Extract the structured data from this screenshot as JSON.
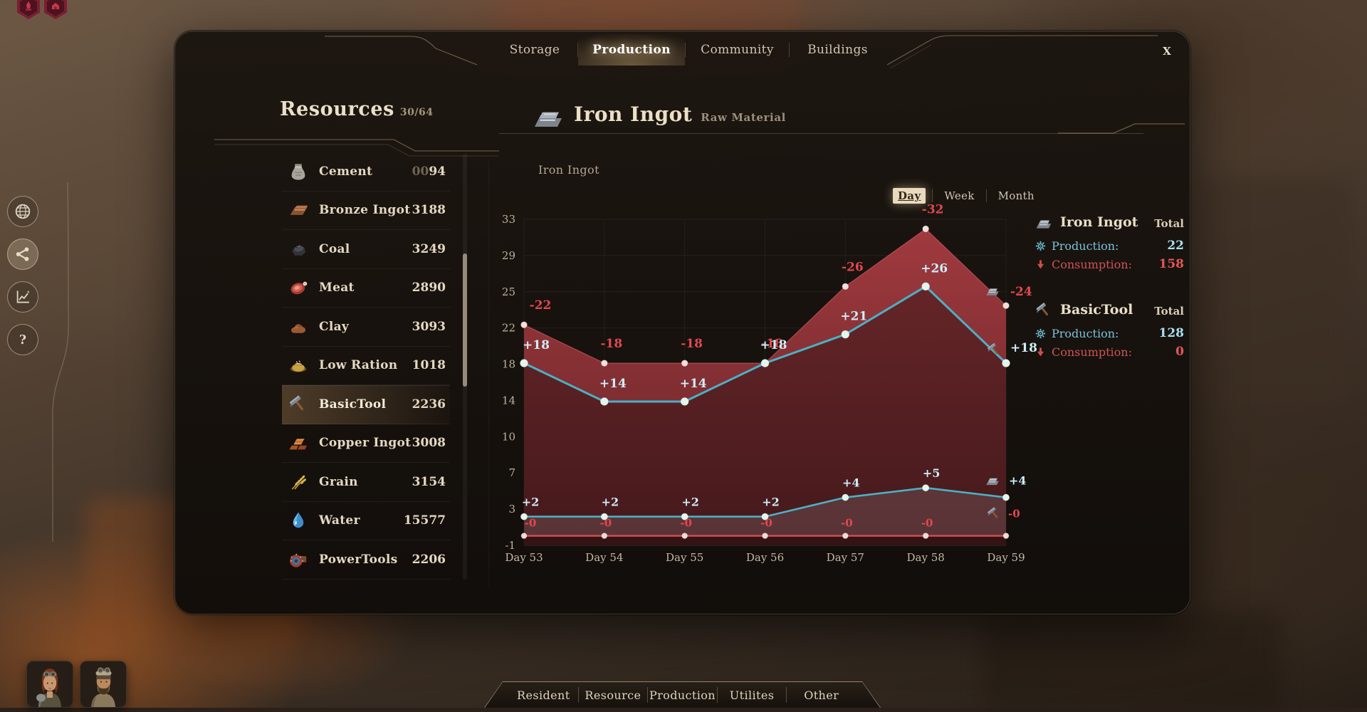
{
  "window": {
    "close_label": "X"
  },
  "top_tabs": [
    {
      "label": "Storage",
      "active": false
    },
    {
      "label": "Production",
      "active": true
    },
    {
      "label": "Community",
      "active": false
    },
    {
      "label": "Buildings",
      "active": false
    }
  ],
  "side_buttons": [
    {
      "icon": "globe-icon"
    },
    {
      "icon": "share-icon"
    },
    {
      "icon": "stats-icon"
    },
    {
      "icon": "help-icon",
      "glyph": "?"
    }
  ],
  "resources": {
    "title": "Resources",
    "count": "30/64",
    "items": [
      {
        "icon": "cement-icon",
        "name": "Cement",
        "value_dim": "00",
        "value": "94",
        "selected": false
      },
      {
        "icon": "bronze-ingot-icon",
        "name": "Bronze Ingot",
        "value_dim": "",
        "value": "3188",
        "selected": false
      },
      {
        "icon": "coal-icon",
        "name": "Coal",
        "value_dim": "",
        "value": "3249",
        "selected": false
      },
      {
        "icon": "meat-icon",
        "name": "Meat",
        "value_dim": "",
        "value": "2890",
        "selected": false
      },
      {
        "icon": "clay-icon",
        "name": "Clay",
        "value_dim": "",
        "value": "3093",
        "selected": false
      },
      {
        "icon": "low-ration-icon",
        "name": "Low Ration",
        "value_dim": "",
        "value": "1018",
        "selected": false
      },
      {
        "icon": "basic-tool-icon",
        "name": "BasicTool",
        "value_dim": "",
        "value": "2236",
        "selected": true
      },
      {
        "icon": "copper-ingot-icon",
        "name": "Copper Ingot",
        "value_dim": "",
        "value": "3008",
        "selected": false
      },
      {
        "icon": "grain-icon",
        "name": "Grain",
        "value_dim": "",
        "value": "3154",
        "selected": false
      },
      {
        "icon": "water-icon",
        "name": "Water",
        "value_dim": "",
        "value": "15577",
        "selected": false
      },
      {
        "icon": "power-tools-icon",
        "name": "PowerTools",
        "value_dim": "",
        "value": "2206",
        "selected": false
      }
    ]
  },
  "detail": {
    "icon": "iron-ingot-icon",
    "title": "Iron Ingot",
    "subtitle": "Raw Material",
    "chart_caption": "Iron Ingot",
    "range_tabs": [
      {
        "label": "Day",
        "active": true
      },
      {
        "label": "Week",
        "active": false
      },
      {
        "label": "Month",
        "active": false
      }
    ]
  },
  "stats": [
    {
      "icon": "iron-ingot-icon",
      "name": "Iron Ingot",
      "total_label": "Total",
      "production_label": "Production:",
      "production": "22",
      "consumption_label": "Consumption:",
      "consumption": "158"
    },
    {
      "icon": "basic-tool-icon",
      "name": "BasicTool",
      "total_label": "Total",
      "production_label": "Production:",
      "production": "128",
      "consumption_label": "Consumption:",
      "consumption": "0"
    }
  ],
  "bottom_tabs": [
    "Resident",
    "Resource",
    "Production",
    "Utilites",
    "Other"
  ],
  "avatars": [
    {
      "icon": "avatar-woman"
    },
    {
      "icon": "avatar-man"
    }
  ],
  "chart_data": {
    "type": "area",
    "title": "Iron Ingot",
    "x_labels": [
      "Day 53",
      "Day 54",
      "Day 55",
      "Day 56",
      "Day 57",
      "Day 58",
      "Day 59"
    ],
    "y_ticks": [
      33,
      29,
      25,
      22,
      18,
      14,
      10,
      7,
      3,
      -1
    ],
    "ylim": [
      -1,
      33
    ],
    "grid": true,
    "legend_position": "none",
    "series": [
      {
        "name": "Iron Ingot Consumption",
        "style": "area",
        "color": "#c2494f",
        "label_color": "#e2484f",
        "values": [
          22,
          18,
          18,
          18,
          26,
          32,
          24
        ],
        "labels": [
          "-22",
          "-18",
          "-18",
          "-18",
          "-26",
          "-32",
          "-24"
        ],
        "end_icon": "iron-ingot-icon"
      },
      {
        "name": "BasicTool Production",
        "style": "line",
        "color": "#4bb0c5",
        "label_color": "#cdeef8",
        "values": [
          18,
          14,
          14,
          18,
          21,
          26,
          18
        ],
        "labels": [
          "+18",
          "+14",
          "+14",
          "+18",
          "+21",
          "+26",
          "+18"
        ],
        "end_icon": "basic-tool-icon"
      },
      {
        "name": "Iron Ingot Production",
        "style": "line",
        "color": "#4bb0c5",
        "label_color": "#cdeef8",
        "values": [
          2,
          2,
          2,
          2,
          4,
          5,
          4
        ],
        "labels": [
          "+2",
          "+2",
          "+2",
          "+2",
          "+4",
          "+5",
          "+4"
        ],
        "end_icon": "iron-ingot-icon"
      },
      {
        "name": "BasicTool Consumption",
        "style": "line",
        "color": "#d5504d",
        "label_color": "#e2484f",
        "values": [
          0,
          0,
          0,
          0,
          0,
          0,
          0
        ],
        "labels": [
          "-0",
          "-0",
          "-0",
          "-0",
          "-0",
          "-0",
          "-0"
        ],
        "end_icon": "basic-tool-icon"
      }
    ]
  }
}
